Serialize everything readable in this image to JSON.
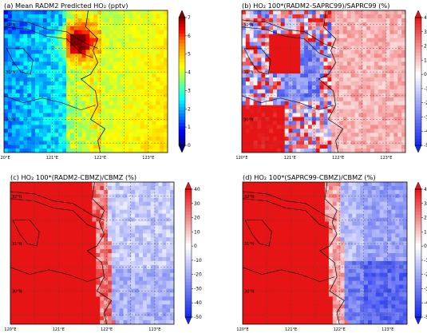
{
  "chart_data": [
    {
      "type": "heatmap",
      "panel": "a",
      "title": "(a) Mean RADM2 Predicted HO₂ (pptv)",
      "xlabel": "",
      "ylabel": "",
      "x_ticks": [
        "120°E",
        "121°E",
        "122°E",
        "123°E"
      ],
      "y_ticks": [
        "32°N",
        "31°N",
        "30°N"
      ],
      "xlim": [
        120,
        123.4
      ],
      "ylim": [
        29.3,
        32.3
      ],
      "colorbar": {
        "min": 0,
        "max": 7,
        "ticks": [
          0,
          1,
          2,
          3,
          4,
          5,
          6,
          7
        ],
        "scheme": "jet",
        "extend": "both"
      },
      "field_summary": "Low HO2 (0–2 pptv) over the western Yangtze region, peak (6–7 pptv) near 121.5°E 31.6°N, moderate (3–5 pptv) over the East China Sea"
    },
    {
      "type": "heatmap",
      "panel": "b",
      "title": "(b) HO₂ 100*(RADM2-SAPRC99)/SAPRC99 (%)",
      "xlabel": "",
      "ylabel": "",
      "x_ticks": [
        "120°E",
        "121°E",
        "122°E",
        "123°E"
      ],
      "y_ticks": [
        "32°N",
        "31°N",
        "30°N"
      ],
      "xlim": [
        120,
        123.4
      ],
      "ylim": [
        29.3,
        32.3
      ],
      "colorbar": {
        "min": -50,
        "max": 40,
        "ticks": [
          -50,
          -40,
          -30,
          -20,
          -10,
          0,
          10,
          20,
          30,
          40
        ],
        "scheme": "bwr",
        "extend": "both"
      },
      "field_summary": "Mixed positive (up to +40%) and negative (to -40%) patches over land, weakly positive over sea"
    },
    {
      "type": "heatmap",
      "panel": "c",
      "title": "(c) HO₂ 100*(RADM2-CBMZ)/CBMZ (%)",
      "xlabel": "",
      "ylabel": "",
      "x_ticks": [
        "120°E",
        "121°E",
        "122°E",
        "123°E"
      ],
      "y_ticks": [
        "32°N",
        "31°N",
        "30°N"
      ],
      "xlim": [
        120,
        123.4
      ],
      "ylim": [
        29.3,
        32.3
      ],
      "colorbar": {
        "min": -50,
        "max": 40,
        "ticks": [
          -50,
          -40,
          -30,
          -20,
          -10,
          0,
          10,
          20,
          30,
          40
        ],
        "scheme": "bwr",
        "extend": "both"
      },
      "field_summary": "Strongly positive (>40%) over land west of 121.8°E, near zero to slightly negative (-10 to -20%) over the sea"
    },
    {
      "type": "heatmap",
      "panel": "d",
      "title": "(d) HO₂ 100*(SAPRC99-CBMZ)/CBMZ (%)",
      "xlabel": "",
      "ylabel": "",
      "x_ticks": [
        "120°E",
        "121°E",
        "122°E",
        "123°E"
      ],
      "y_ticks": [
        "32°N",
        "31°N",
        "30°N"
      ],
      "xlim": [
        120,
        123.4
      ],
      "ylim": [
        29.3,
        32.3
      ],
      "colorbar": {
        "min": -50,
        "max": 40,
        "ticks": [
          -50,
          -40,
          -30,
          -20,
          -10,
          0,
          10,
          20,
          30,
          40
        ],
        "scheme": "bwr",
        "extend": "both"
      },
      "field_summary": "Strongly positive (>40%) over land, negative (-20 to -40%) over the southeastern sea"
    }
  ]
}
